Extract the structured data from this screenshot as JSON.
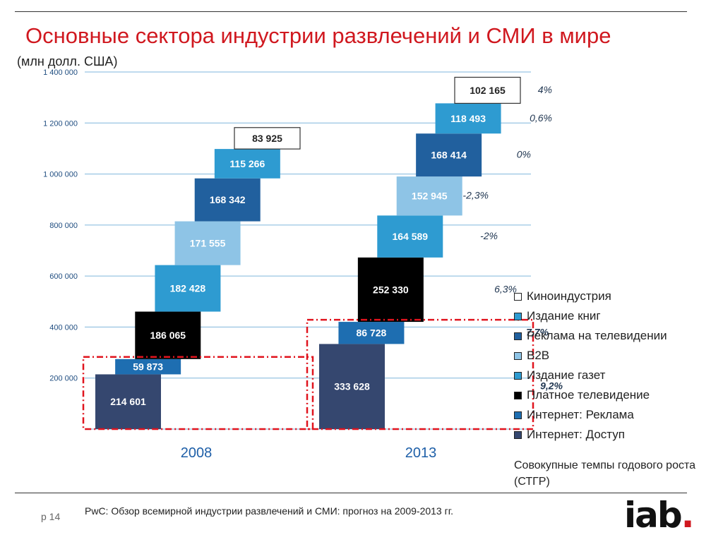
{
  "title": "Основные сектора индустрии развлечений и СМИ в мире",
  "subtitle": "(млн долл. США)",
  "page": "p 14",
  "source": "PwC: Обзор всемирной индустрии развлечений и СМИ: прогноз на 2009-2013 гг.",
  "cagr_label": "Совокупные темпы годового роста (СТГР)",
  "logo": {
    "text": "iab",
    "dot": "."
  },
  "legend": [
    {
      "label": "Киноиндустрия",
      "color": "#ffffff"
    },
    {
      "label": "Издание книг",
      "color": "#2e9bd1"
    },
    {
      "label": "Реклама на телевидении",
      "color": "#21609e"
    },
    {
      "label": "B2B",
      "color": "#8ec4e6"
    },
    {
      "label": "Издание газет",
      "color": "#2e9bd1"
    },
    {
      "label": "Платное телевидение",
      "color": "#000000"
    },
    {
      "label": "Интернет: Реклама",
      "color": "#1e6eb1"
    },
    {
      "label": "Интернет: Доступ",
      "color": "#35476f"
    }
  ],
  "chart_data": {
    "type": "bar",
    "subtype": "stacked waterfall",
    "categories": [
      "2008",
      "2013"
    ],
    "ylim": [
      0,
      1400000
    ],
    "yticks": [
      200000,
      400000,
      600000,
      800000,
      1000000,
      1200000,
      1400000
    ],
    "ytick_labels": [
      "200 000",
      "400 000",
      "600 000",
      "800 000",
      "1 000 000",
      "1 200 000",
      "1 400 000"
    ],
    "grid": true,
    "series": [
      {
        "name": "Интернет: Доступ",
        "color": "#35476f",
        "text_color": "#ffffff",
        "values": [
          214601,
          333628
        ],
        "labels": [
          "214 601",
          "333 628"
        ],
        "cagr": "9,2%",
        "cagr_bold": true
      },
      {
        "name": "Интернет: Реклама",
        "color": "#1e6eb1",
        "text_color": "#ffffff",
        "values": [
          59873,
          86728
        ],
        "labels": [
          "59 873",
          "86 728"
        ],
        "cagr": "7,7%",
        "cagr_bold": true
      },
      {
        "name": "Платное телевидение",
        "color": "#000000",
        "text_color": "#ffffff",
        "values": [
          186065,
          252330
        ],
        "labels": [
          "186 065",
          "252 330"
        ],
        "cagr": "6,3%",
        "cagr_bold": false
      },
      {
        "name": "Издание газет",
        "color": "#2e9bd1",
        "text_color": "#ffffff",
        "values": [
          182428,
          164589
        ],
        "labels": [
          "182 428",
          "164 589"
        ],
        "cagr": "-2%",
        "cagr_bold": false
      },
      {
        "name": "B2B",
        "color": "#8ec4e6",
        "text_color": "#ffffff",
        "values": [
          171555,
          152945
        ],
        "labels": [
          "171 555",
          "152 945"
        ],
        "cagr": "-2,3%",
        "cagr_bold": false
      },
      {
        "name": "Реклама на телевидении",
        "color": "#21609e",
        "text_color": "#ffffff",
        "values": [
          168342,
          168414
        ],
        "labels": [
          "168 342",
          "168 414"
        ],
        "cagr": "0%",
        "cagr_bold": false
      },
      {
        "name": "Издание книг",
        "color": "#2e9bd1",
        "text_color": "#ffffff",
        "values": [
          115266,
          118493
        ],
        "labels": [
          "115 266",
          "118 493"
        ],
        "cagr": "0,6%",
        "cagr_bold": false
      },
      {
        "name": "Киноиндустрия",
        "color": "#ffffff",
        "text_color": "#222222",
        "values": [
          83925,
          102165
        ],
        "labels": [
          "83 925",
          "102 165"
        ],
        "cagr": "4%",
        "cagr_bold": false
      }
    ],
    "highlight": {
      "color": "#e0141e",
      "series_count": 2
    }
  }
}
